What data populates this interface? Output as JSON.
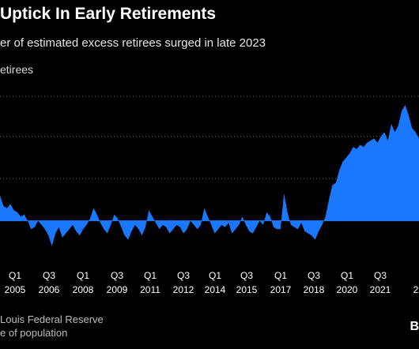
{
  "chart_data": {
    "type": "area",
    "title": "Uptick In Early Retirements",
    "subtitle": "er of estimated excess retirees surged in late 2023",
    "ylabel": "etirees",
    "color": "#1a78ff",
    "grid": true,
    "tick_labels": [
      {
        "q": "Q1",
        "year": "2005"
      },
      {
        "q": "Q3",
        "year": "2006"
      },
      {
        "q": "Q1",
        "year": "2008"
      },
      {
        "q": "Q3",
        "year": "2009"
      },
      {
        "q": "Q1",
        "year": "2011"
      },
      {
        "q": "Q3",
        "year": "2012"
      },
      {
        "q": "Q1",
        "year": "2014"
      },
      {
        "q": "Q3",
        "year": "2015"
      },
      {
        "q": "Q1",
        "year": "2017"
      },
      {
        "q": "Q3",
        "year": "2018"
      },
      {
        "q": "Q1",
        "year": "2020"
      },
      {
        "q": "Q3",
        "year": "2021"
      },
      {
        "q": "",
        "year": "2"
      }
    ],
    "ylim": [
      -0.7,
      2.95
    ],
    "series": [
      {
        "values": [
          0.6,
          0.35,
          0.3,
          0.4,
          0.25,
          0.2,
          0.1,
          0.15,
          0.0,
          -0.2,
          -0.15,
          0.0,
          -0.1,
          -0.2,
          -0.35,
          -0.6,
          -0.3,
          -0.15,
          -0.4,
          -0.3,
          -0.2,
          -0.1,
          -0.25,
          -0.35,
          -0.2,
          -0.1,
          0.05,
          0.3,
          0.15,
          -0.05,
          -0.2,
          -0.3,
          -0.1,
          0.15,
          0.05,
          -0.15,
          -0.35,
          -0.45,
          -0.25,
          -0.1,
          -0.2,
          -0.35,
          -0.15,
          0.25,
          0.1,
          -0.05,
          -0.2,
          -0.1,
          -0.15,
          -0.3,
          -0.2,
          -0.1,
          -0.15,
          -0.3,
          -0.2,
          0.0,
          -0.1,
          -0.2,
          -0.1,
          0.3,
          0.1,
          -0.1,
          -0.3,
          -0.2,
          -0.1,
          -0.15,
          -0.05,
          -0.3,
          -0.2,
          -0.1,
          0.1,
          -0.1,
          -0.25,
          -0.3,
          -0.15,
          0.0,
          -0.1,
          0.2,
          0.1,
          -0.15,
          -0.2,
          -0.2,
          0.65,
          0.2,
          -0.1,
          -0.15,
          -0.2,
          -0.05,
          -0.25,
          -0.3,
          -0.35,
          -0.45,
          -0.25,
          -0.1,
          0.1,
          0.5,
          0.85,
          0.9,
          1.2,
          1.4,
          1.5,
          1.6,
          1.75,
          1.7,
          1.8,
          1.75,
          1.85,
          1.9,
          1.95,
          1.85,
          2.0,
          2.1,
          1.9,
          2.3,
          2.1,
          2.25,
          2.6,
          2.75,
          2.5,
          2.2,
          2.1,
          1.95
        ]
      }
    ]
  },
  "footer": {
    "source": "Louis Federal Reserve",
    "note": "e of population"
  },
  "logo": "B"
}
